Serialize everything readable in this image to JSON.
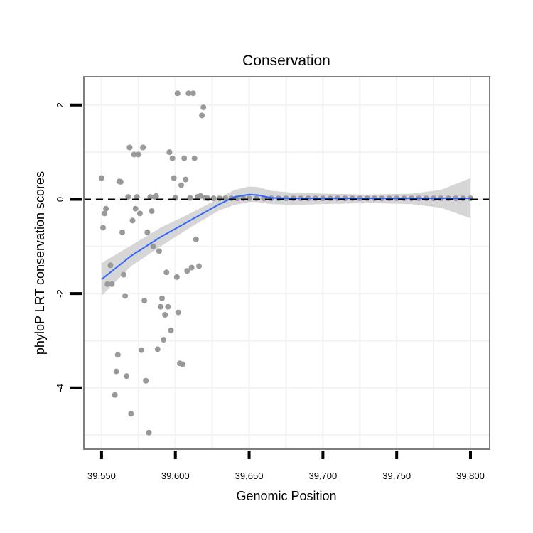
{
  "chart_data": {
    "type": "scatter",
    "title": "Conservation",
    "xlabel": "Genomic Position",
    "ylabel": "phyloP LRT conservation scores",
    "xlim": [
      39538,
      39813
    ],
    "ylim": [
      -5.3,
      2.6
    ],
    "x_ticks": [
      39550,
      39600,
      39650,
      39700,
      39750,
      39800
    ],
    "x_tick_labels": [
      "39,550",
      "39,600",
      "39,650",
      "39,700",
      "39,750",
      "39,800"
    ],
    "y_ticks": [
      -4,
      -2,
      0,
      2
    ],
    "y_tick_labels": [
      "-4",
      "-2",
      "0",
      "2"
    ],
    "minor_x": [
      39575,
      39625,
      39675,
      39725,
      39775
    ],
    "minor_y": [
      -5,
      -3,
      -1,
      1
    ],
    "reference_line": {
      "y": 0,
      "style": "dashed"
    },
    "colors": {
      "points": "#999999",
      "smooth": "#3366ff",
      "ribbon": "#d6d6d6",
      "grid": "#f2f2f2",
      "border": "#7f7f7f"
    },
    "points": [
      [
        39550,
        0.45
      ],
      [
        39551,
        -0.6
      ],
      [
        39552,
        -0.3
      ],
      [
        39553,
        -0.2
      ],
      [
        39554,
        -1.8
      ],
      [
        39556,
        -1.4
      ],
      [
        39557,
        -1.8
      ],
      [
        39559,
        -4.15
      ],
      [
        39560,
        -3.65
      ],
      [
        39561,
        -3.3
      ],
      [
        39562,
        0.38
      ],
      [
        39563,
        0.37
      ],
      [
        39564,
        -0.7
      ],
      [
        39565,
        -1.6
      ],
      [
        39566,
        -2.05
      ],
      [
        39567,
        -3.75
      ],
      [
        39568,
        0.05
      ],
      [
        39569,
        1.1
      ],
      [
        39570,
        -4.55
      ],
      [
        39571,
        -0.45
      ],
      [
        39572,
        0.95
      ],
      [
        39573,
        -0.2
      ],
      [
        39574,
        0.05
      ],
      [
        39575,
        0.95
      ],
      [
        39576,
        -0.3
      ],
      [
        39577,
        -3.2
      ],
      [
        39578,
        1.1
      ],
      [
        39579,
        -2.15
      ],
      [
        39580,
        -3.85
      ],
      [
        39581,
        -0.7
      ],
      [
        39582,
        -4.95
      ],
      [
        39583,
        0.05
      ],
      [
        39584,
        -0.25
      ],
      [
        39585,
        -1.0
      ],
      [
        39586,
        0.05
      ],
      [
        39587,
        0.07
      ],
      [
        39588,
        -3.18
      ],
      [
        39589,
        -1.1
      ],
      [
        39590,
        -2.28
      ],
      [
        39591,
        -2.1
      ],
      [
        39592,
        -2.98
      ],
      [
        39593,
        -2.45
      ],
      [
        39594,
        -1.55
      ],
      [
        39595,
        -2.28
      ],
      [
        39596,
        1.0
      ],
      [
        39597,
        -2.78
      ],
      [
        39598,
        0.87
      ],
      [
        39599,
        0.45
      ],
      [
        39600,
        0.03
      ],
      [
        39601,
        -1.65
      ],
      [
        39601.5,
        2.25
      ],
      [
        39602,
        -2.4
      ],
      [
        39603,
        -3.48
      ],
      [
        39604,
        0.3
      ],
      [
        39605,
        -3.5
      ],
      [
        39606,
        0.87
      ],
      [
        39607,
        0.42
      ],
      [
        39608,
        -1.52
      ],
      [
        39609,
        2.25
      ],
      [
        39610,
        0.03
      ],
      [
        39611,
        -1.45
      ],
      [
        39612,
        2.25
      ],
      [
        39613,
        0.87
      ],
      [
        39614,
        -0.85
      ],
      [
        39615,
        0.05
      ],
      [
        39616,
        -1.42
      ],
      [
        39617,
        0.07
      ],
      [
        39618,
        1.78
      ],
      [
        39619,
        1.95
      ],
      [
        39620,
        0.03
      ],
      [
        39622,
        0.02
      ],
      [
        39626,
        0.02
      ],
      [
        39630,
        0.02
      ],
      [
        39634,
        0.02
      ],
      [
        39638,
        0.02
      ],
      [
        39642,
        0.02
      ],
      [
        39646,
        0.02
      ],
      [
        39650,
        0.02
      ],
      [
        39655,
        0.02
      ],
      [
        39660,
        0.02
      ],
      [
        39665,
        0.02
      ],
      [
        39670,
        0.02
      ],
      [
        39675,
        0.02
      ],
      [
        39680,
        0.02
      ],
      [
        39685,
        0.02
      ],
      [
        39690,
        0.02
      ],
      [
        39695,
        0.02
      ],
      [
        39700,
        0.02
      ],
      [
        39705,
        0.02
      ],
      [
        39710,
        0.02
      ],
      [
        39715,
        0.02
      ],
      [
        39720,
        0.02
      ],
      [
        39725,
        0.02
      ],
      [
        39730,
        0.02
      ],
      [
        39735,
        0.02
      ],
      [
        39740,
        0.02
      ],
      [
        39745,
        0.02
      ],
      [
        39750,
        0.02
      ],
      [
        39755,
        0.02
      ],
      [
        39760,
        0.02
      ],
      [
        39765,
        0.02
      ],
      [
        39770,
        0.02
      ],
      [
        39775,
        0.02
      ],
      [
        39780,
        0.02
      ],
      [
        39785,
        0.02
      ],
      [
        39790,
        0.02
      ],
      [
        39795,
        0.02
      ],
      [
        39800,
        0.02
      ]
    ],
    "smooth_fit": {
      "x": [
        39550,
        39570,
        39590,
        39610,
        39630,
        39640,
        39650,
        39656,
        39665,
        39680,
        39700,
        39730,
        39760,
        39780,
        39800
      ],
      "y": [
        -1.7,
        -1.2,
        -0.8,
        -0.45,
        -0.1,
        0.05,
        0.1,
        0.09,
        0.03,
        0.02,
        0.02,
        0.02,
        0.02,
        0.02,
        0.02
      ],
      "lower": [
        -2.05,
        -1.42,
        -1.0,
        -0.6,
        -0.23,
        -0.12,
        -0.06,
        -0.06,
        -0.1,
        -0.12,
        -0.1,
        -0.08,
        -0.1,
        -0.18,
        -0.4
      ],
      "upper": [
        -1.35,
        -0.98,
        -0.6,
        -0.3,
        0.03,
        0.2,
        0.27,
        0.26,
        0.18,
        0.14,
        0.12,
        0.1,
        0.12,
        0.2,
        0.45
      ]
    }
  }
}
